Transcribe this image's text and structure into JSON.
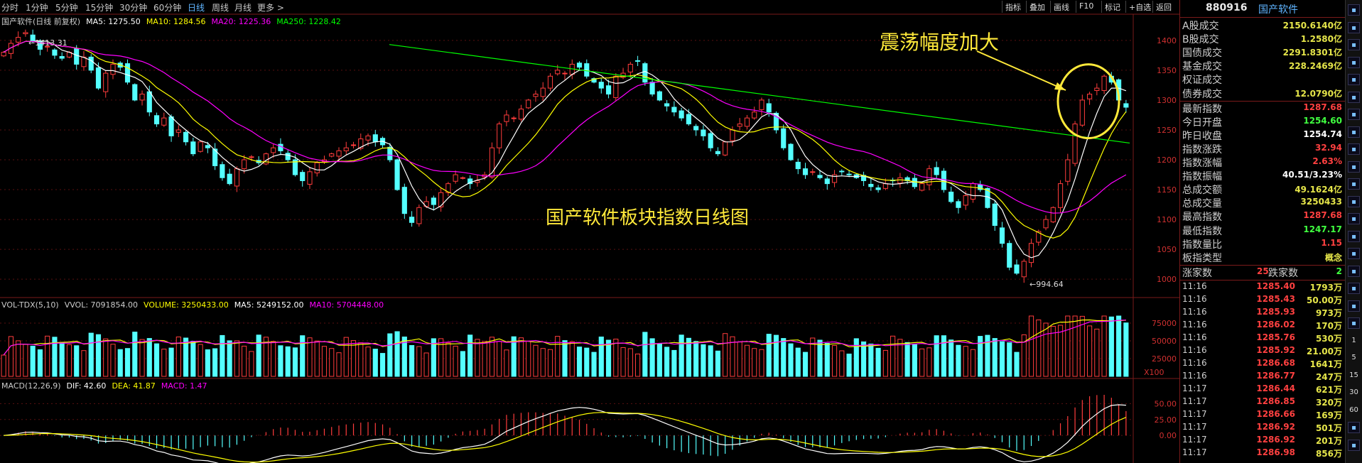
{
  "tabs": [
    {
      "label": "分时",
      "active": false
    },
    {
      "label": "1分钟",
      "active": false
    },
    {
      "label": "5分钟",
      "active": false
    },
    {
      "label": "15分钟",
      "active": false
    },
    {
      "label": "30分钟",
      "active": false
    },
    {
      "label": "60分钟",
      "active": false
    },
    {
      "label": "日线",
      "active": true
    },
    {
      "label": "周线",
      "active": false
    },
    {
      "label": "月线",
      "active": false
    },
    {
      "label": "更多 >",
      "active": false
    }
  ],
  "toolbar": [
    "指标",
    "叠加",
    "画线",
    "F10",
    "标记",
    "+自选",
    "返回"
  ],
  "price_legend": {
    "title": "国产软件(日线 前复权)",
    "ma5": "MA5: 1275.50",
    "ma10": "MA10: 1284.56",
    "ma20": "MA20: 1225.36",
    "ma250": "MA250: 1228.42"
  },
  "vol_legend": {
    "title": "VOL-TDX(5,10)",
    "vvol": "VVOL: 7091854.00",
    "volume": "VOLUME: 3250433.00",
    "ma5": "MA5: 5249152.00",
    "ma10": "MA10: 5704448.00"
  },
  "macd_legend": {
    "title": "MACD(12,26,9)",
    "dif": "DIF: 42.60",
    "dea": "DEA: 41.87",
    "macd": "MACD: 1.47"
  },
  "price_axis": [
    "1400",
    "1350",
    "1300",
    "1250",
    "1200",
    "1150",
    "1100",
    "1050",
    "1000"
  ],
  "vol_axis": [
    "75000",
    "50000",
    "25000"
  ],
  "vol_unit": "X100",
  "macd_axis": [
    "50.00",
    "25.00",
    "0.00"
  ],
  "annotations": {
    "high": "1413.31",
    "low": "994.64",
    "title": "国产软件板块指数日线图",
    "note": "震荡幅度加大"
  },
  "colors": {
    "up": "#ff3c3c",
    "down": "#54ffff",
    "ma5": "#ffffff",
    "ma10": "#ffff00",
    "ma20": "#ff00ff",
    "ma250": "#00ff00",
    "accent": "#5fb4ff"
  },
  "panel": {
    "code": "880916",
    "name": "国产软件",
    "stats": [
      {
        "label": "A股成交",
        "value": "2150.6140亿",
        "color": "#e6e64a"
      },
      {
        "label": "B股成交",
        "value": "1.2580亿",
        "color": "#e6e64a"
      },
      {
        "label": "国债成交",
        "value": "2291.8301亿",
        "color": "#e6e64a"
      },
      {
        "label": "基金成交",
        "value": "228.2469亿",
        "color": "#e6e64a"
      },
      {
        "label": "权证成交",
        "value": "",
        "color": "#e6e64a"
      },
      {
        "label": "债券成交",
        "value": "12.0790亿",
        "color": "#e6e64a"
      }
    ],
    "quote": [
      {
        "label": "最新指数",
        "value": "1287.68",
        "color": "#ff4040"
      },
      {
        "label": "今日开盘",
        "value": "1254.60",
        "color": "#40ff40"
      },
      {
        "label": "昨日收盘",
        "value": "1254.74",
        "color": "#ffffff"
      },
      {
        "label": "指数涨跌",
        "value": "32.94",
        "color": "#ff4040"
      },
      {
        "label": "指数涨幅",
        "value": "2.63%",
        "color": "#ff4040"
      },
      {
        "label": "指数振幅",
        "value": "40.51/3.23%",
        "color": "#ffffff"
      },
      {
        "label": "总成交额",
        "value": "49.1624亿",
        "color": "#e6e64a"
      },
      {
        "label": "总成交量",
        "value": "3250433",
        "color": "#e6e64a"
      },
      {
        "label": "最高指数",
        "value": "1287.68",
        "color": "#ff4040"
      },
      {
        "label": "最低指数",
        "value": "1247.17",
        "color": "#40ff40"
      },
      {
        "label": "指数量比",
        "value": "1.15",
        "color": "#ff4040"
      },
      {
        "label": "板指类型",
        "value": "概念",
        "color": "#e6e64a"
      }
    ],
    "breadth": {
      "up_label": "涨家数",
      "up": "25",
      "down_label": "跌家数",
      "down": "2"
    },
    "ticks": [
      {
        "t": "11:16",
        "p": "1285.40",
        "v": "1793万"
      },
      {
        "t": "11:16",
        "p": "1285.43",
        "v": "50.00万"
      },
      {
        "t": "11:16",
        "p": "1285.93",
        "v": "973万"
      },
      {
        "t": "11:16",
        "p": "1286.02",
        "v": "170万"
      },
      {
        "t": "11:16",
        "p": "1285.76",
        "v": "530万"
      },
      {
        "t": "11:16",
        "p": "1285.92",
        "v": "21.00万"
      },
      {
        "t": "11:16",
        "p": "1286.68",
        "v": "1641万"
      },
      {
        "t": "11:16",
        "p": "1286.77",
        "v": "247万"
      },
      {
        "t": "11:17",
        "p": "1286.44",
        "v": "621万"
      },
      {
        "t": "11:17",
        "p": "1286.85",
        "v": "320万"
      },
      {
        "t": "11:17",
        "p": "1286.66",
        "v": "169万"
      },
      {
        "t": "11:17",
        "p": "1286.92",
        "v": "501万"
      },
      {
        "t": "11:17",
        "p": "1286.92",
        "v": "201万"
      },
      {
        "t": "11:17",
        "p": "1286.98",
        "v": "856万"
      }
    ]
  },
  "side_icons": [
    "grid-icon",
    "list-icon",
    "bars-icon",
    "chart-icon",
    "pie-icon",
    "sheet-icon",
    "compare-icon",
    "flag-icon",
    "doc-icon",
    "table-icon",
    "f1-icon",
    "stack-icon",
    "rsi-icon",
    "s-icon",
    "move-icon",
    "draw-icon",
    "f5-icon",
    "t-icon",
    "b-icon",
    "1",
    "5",
    "15",
    "30",
    "60",
    "d-icon",
    "w-icon"
  ],
  "chart_data": {
    "type": "candlestick",
    "ylim": [
      980,
      1420
    ],
    "close_path": [
      1380,
      1395,
      1405,
      1413,
      1398,
      1385,
      1390,
      1375,
      1370,
      1380,
      1360,
      1372,
      1350,
      1320,
      1345,
      1360,
      1355,
      1330,
      1300,
      1310,
      1280,
      1260,
      1270,
      1240,
      1250,
      1230,
      1210,
      1230,
      1220,
      1190,
      1170,
      1160,
      1185,
      1200,
      1205,
      1195,
      1210,
      1220,
      1215,
      1200,
      1175,
      1165,
      1180,
      1195,
      1200,
      1210,
      1215,
      1220,
      1225,
      1235,
      1240,
      1230,
      1225,
      1200,
      1150,
      1110,
      1095,
      1120,
      1130,
      1125,
      1145,
      1160,
      1175,
      1170,
      1160,
      1165,
      1175,
      1220,
      1260,
      1275,
      1270,
      1285,
      1300,
      1310,
      1320,
      1340,
      1350,
      1345,
      1360,
      1355,
      1340,
      1330,
      1320,
      1310,
      1340,
      1345,
      1360,
      1365,
      1330,
      1310,
      1300,
      1290,
      1280,
      1270,
      1260,
      1250,
      1240,
      1220,
      1210,
      1230,
      1250,
      1260,
      1270,
      1280,
      1300,
      1280,
      1250,
      1220,
      1200,
      1185,
      1175,
      1180,
      1170,
      1160,
      1175,
      1180,
      1175,
      1170,
      1165,
      1155,
      1150,
      1160,
      1165,
      1170,
      1165,
      1155,
      1160,
      1185,
      1175,
      1150,
      1130,
      1120,
      1140,
      1160,
      1150,
      1120,
      1090,
      1060,
      1020,
      1010,
      1030,
      1060,
      1080,
      1100,
      1120,
      1160,
      1200,
      1260,
      1300,
      1310,
      1320,
      1340,
      1330,
      1300,
      1288
    ]
  }
}
